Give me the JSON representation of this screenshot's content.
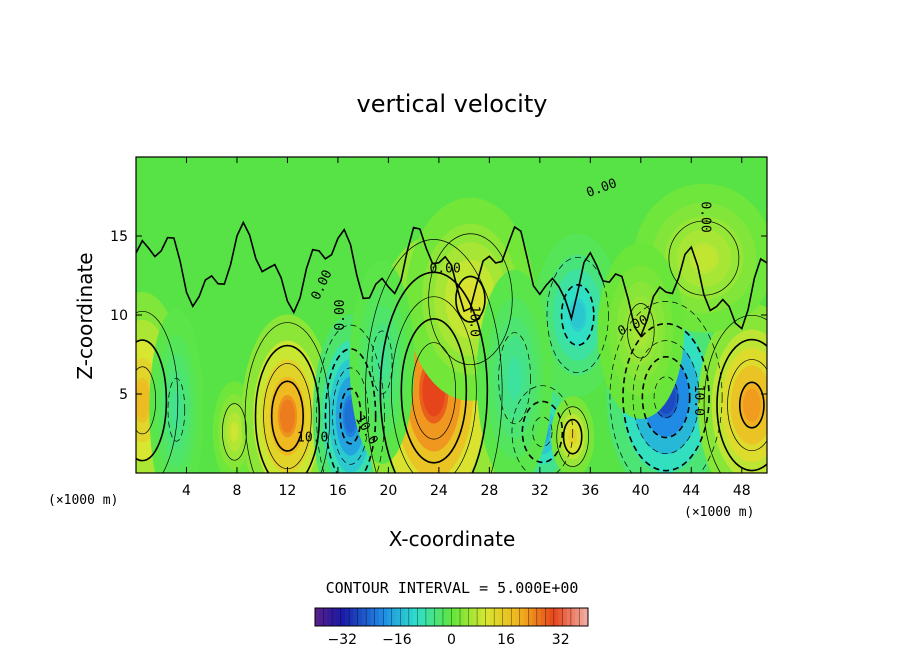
{
  "chart_data": {
    "type": "heatmap",
    "title": "vertical velocity",
    "xlabel": "X-coordinate",
    "ylabel": "Z-coordinate",
    "x_unit": "(×1000 m)",
    "xlim": [
      0,
      50
    ],
    "ylim": [
      0,
      20
    ],
    "x_ticks": [
      4,
      8,
      12,
      16,
      20,
      24,
      28,
      32,
      36,
      40,
      44,
      48
    ],
    "y_ticks": [
      5,
      10,
      15
    ],
    "contour_interval_text": "CONTOUR INTERVAL = 5.000E+00",
    "contour_labels": [
      "0.00",
      "0.00",
      "0.00",
      "0.00",
      "0.00",
      "0.00",
      "10.0",
      "10.0",
      "10.0",
      "10.0"
    ],
    "colorbar": {
      "min": -40,
      "max": 40,
      "ticks": [
        -32,
        -16,
        0,
        16,
        32
      ],
      "tick_labels": [
        "−32",
        "−16",
        "0",
        "16",
        "32"
      ]
    },
    "features": [
      {
        "x": 0.5,
        "z": 4.6,
        "value": 18,
        "sx": 1.6,
        "sz": 3.2
      },
      {
        "x": 7.8,
        "z": 2.6,
        "value": 9,
        "sx": 0.8,
        "sz": 1.5
      },
      {
        "x": 12.0,
        "z": 3.6,
        "value": 25,
        "sx": 1.7,
        "sz": 3.0
      },
      {
        "x": 17.0,
        "z": 3.6,
        "value": -23,
        "sx": 1.4,
        "sz": 3.0
      },
      {
        "x": 23.6,
        "z": 5.2,
        "value": 30,
        "sx": 2.6,
        "sz": 4.6
      },
      {
        "x": 26.5,
        "z": 11.0,
        "value": 11,
        "sx": 2.4,
        "sz": 3.0
      },
      {
        "x": 32.2,
        "z": 2.6,
        "value": -17,
        "sx": 1.4,
        "sz": 1.7
      },
      {
        "x": 34.6,
        "z": 2.3,
        "value": 14,
        "sx": 0.8,
        "sz": 1.2
      },
      {
        "x": 35.0,
        "z": 10.0,
        "value": -13,
        "sx": 1.6,
        "sz": 2.4
      },
      {
        "x": 42.0,
        "z": 4.8,
        "value": -27,
        "sx": 2.2,
        "sz": 3.0
      },
      {
        "x": 48.8,
        "z": 4.3,
        "value": 22,
        "sx": 2.0,
        "sz": 3.0
      },
      {
        "x": 45.0,
        "z": 13.6,
        "value": 8,
        "sx": 2.6,
        "sz": 2.2
      },
      {
        "x": 40.0,
        "z": 9.0,
        "value": 6,
        "sx": 1.6,
        "sz": 2.6
      },
      {
        "x": 19.5,
        "z": 7.0,
        "value": -6,
        "sx": 1.2,
        "sz": 3.0
      },
      {
        "x": 30.0,
        "z": 6.0,
        "value": -7,
        "sx": 1.4,
        "sz": 3.2
      },
      {
        "x": 3.2,
        "z": 4.0,
        "value": -6,
        "sx": 1.0,
        "sz": 3.0
      }
    ]
  }
}
